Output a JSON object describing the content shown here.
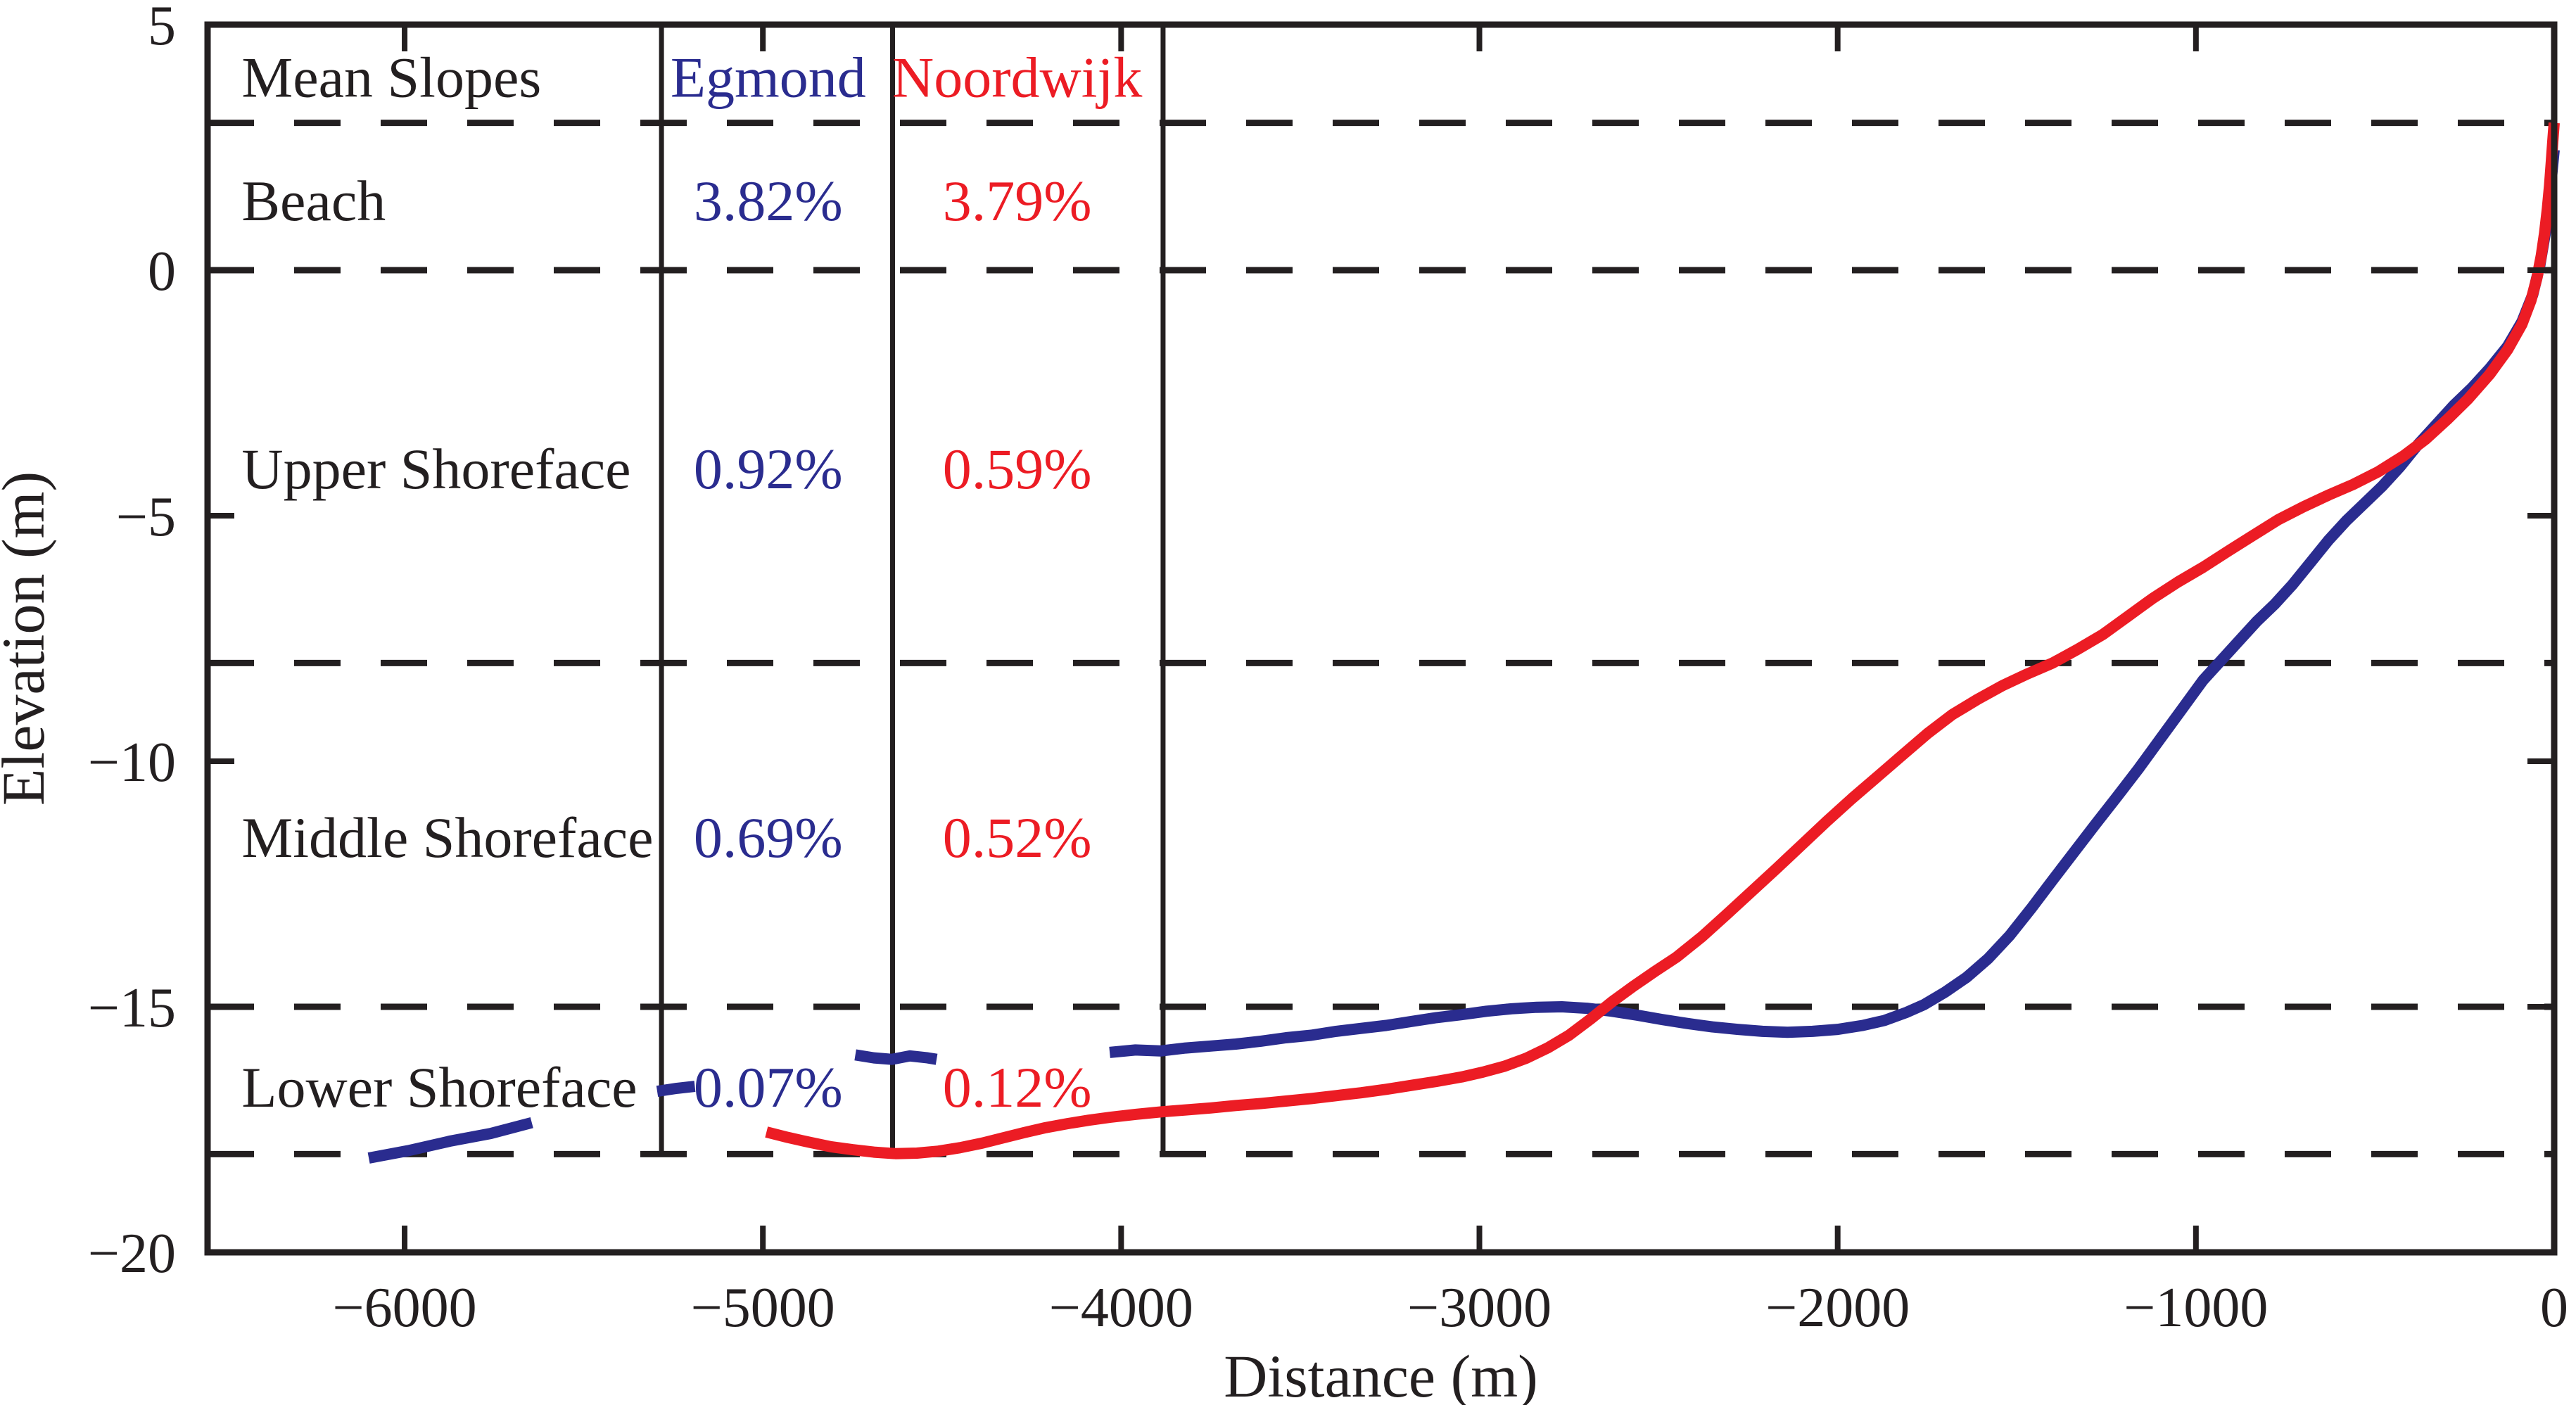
{
  "chart_data": {
    "type": "line",
    "title": "",
    "xlabel": "Distance (m)",
    "ylabel": "Elevation (m)",
    "xlim": [
      -6550,
      0
    ],
    "ylim": [
      -20,
      5
    ],
    "x_ticks": [
      -6000,
      -5000,
      -4000,
      -3000,
      -2000,
      -1000,
      0
    ],
    "x_tick_labels": [
      "−6000",
      "−5000",
      "−4000",
      "−3000",
      "−2000",
      "−1000",
      "0"
    ],
    "y_ticks": [
      5,
      0,
      -5,
      -10,
      -15,
      -20
    ],
    "y_tick_labels": [
      "5",
      "0",
      "−5",
      "−10",
      "−15",
      "−20"
    ],
    "gridlines_y": [
      3,
      0,
      -8,
      -15,
      -18
    ],
    "grid_style": "dashed",
    "legend_position": "none",
    "background": "#ffffff",
    "axis_color": "#231f20",
    "vertical_lines": [
      {
        "x": -5283,
        "y_top": 5,
        "y_bottom": -18
      },
      {
        "x": -4638,
        "y_top": 5,
        "y_bottom": -18
      },
      {
        "x": -3883,
        "y_top": 5,
        "y_bottom": -18
      }
    ],
    "series": [
      {
        "name": "Egmond",
        "color": "#2a2c8f",
        "segments": [
          [
            [
              -6100,
              -18.08
            ],
            [
              -5990,
              -17.93
            ],
            [
              -5870,
              -17.73
            ],
            [
              -5760,
              -17.58
            ],
            [
              -5645,
              -17.36
            ]
          ],
          [
            [
              -5295,
              -16.72
            ],
            [
              -5240,
              -16.66
            ],
            [
              -5190,
              -16.62
            ]
          ],
          [
            [
              -4742,
              -15.98
            ],
            [
              -4690,
              -16.04
            ],
            [
              -4640,
              -16.07
            ],
            [
              -4590,
              -16.0
            ],
            [
              -4540,
              -16.04
            ],
            [
              -4515,
              -16.07
            ]
          ],
          [
            [
              -4032,
              -15.93
            ],
            [
              -3960,
              -15.88
            ],
            [
              -3890,
              -15.9
            ],
            [
              -3820,
              -15.84
            ],
            [
              -3750,
              -15.8
            ],
            [
              -3680,
              -15.76
            ],
            [
              -3610,
              -15.7
            ],
            [
              -3540,
              -15.63
            ],
            [
              -3470,
              -15.58
            ],
            [
              -3400,
              -15.5
            ],
            [
              -3330,
              -15.44
            ],
            [
              -3260,
              -15.38
            ],
            [
              -3190,
              -15.3
            ],
            [
              -3120,
              -15.22
            ],
            [
              -3050,
              -15.16
            ],
            [
              -2980,
              -15.09
            ],
            [
              -2910,
              -15.04
            ],
            [
              -2840,
              -15.01
            ],
            [
              -2770,
              -15.0
            ],
            [
              -2700,
              -15.03
            ],
            [
              -2630,
              -15.09
            ],
            [
              -2560,
              -15.17
            ],
            [
              -2490,
              -15.26
            ],
            [
              -2420,
              -15.34
            ],
            [
              -2350,
              -15.41
            ],
            [
              -2280,
              -15.46
            ],
            [
              -2210,
              -15.5
            ],
            [
              -2140,
              -15.52
            ],
            [
              -2070,
              -15.5
            ],
            [
              -2000,
              -15.46
            ],
            [
              -1930,
              -15.38
            ],
            [
              -1870,
              -15.28
            ],
            [
              -1810,
              -15.12
            ],
            [
              -1760,
              -14.96
            ],
            [
              -1700,
              -14.7
            ],
            [
              -1640,
              -14.4
            ],
            [
              -1580,
              -14.02
            ],
            [
              -1520,
              -13.55
            ],
            [
              -1460,
              -13.0
            ],
            [
              -1400,
              -12.42
            ],
            [
              -1340,
              -11.85
            ],
            [
              -1280,
              -11.28
            ],
            [
              -1220,
              -10.72
            ],
            [
              -1160,
              -10.15
            ],
            [
              -1100,
              -9.55
            ],
            [
              -1040,
              -8.95
            ],
            [
              -980,
              -8.35
            ],
            [
              -930,
              -7.95
            ],
            [
              -880,
              -7.55
            ],
            [
              -830,
              -7.15
            ],
            [
              -780,
              -6.8
            ],
            [
              -730,
              -6.4
            ],
            [
              -680,
              -5.95
            ],
            [
              -630,
              -5.5
            ],
            [
              -580,
              -5.1
            ],
            [
              -530,
              -4.75
            ],
            [
              -480,
              -4.4
            ],
            [
              -430,
              -4.0
            ],
            [
              -380,
              -3.55
            ],
            [
              -330,
              -3.15
            ],
            [
              -280,
              -2.75
            ],
            [
              -230,
              -2.4
            ],
            [
              -180,
              -2.0
            ],
            [
              -130,
              -1.55
            ],
            [
              -90,
              -1.05
            ],
            [
              -60,
              -0.5
            ],
            [
              -40,
              0.1
            ],
            [
              -25,
              0.75
            ],
            [
              -14,
              1.4
            ],
            [
              -6,
              2.0
            ],
            [
              0,
              2.45
            ]
          ]
        ]
      },
      {
        "name": "Noordwijk",
        "color": "#ec1c24",
        "segments": [
          [
            [
              -4990,
              -17.55
            ],
            [
              -4930,
              -17.66
            ],
            [
              -4870,
              -17.76
            ],
            [
              -4810,
              -17.85
            ],
            [
              -4750,
              -17.91
            ],
            [
              -4690,
              -17.96
            ],
            [
              -4630,
              -17.99
            ],
            [
              -4570,
              -17.98
            ],
            [
              -4510,
              -17.94
            ],
            [
              -4450,
              -17.87
            ],
            [
              -4390,
              -17.78
            ],
            [
              -4330,
              -17.67
            ],
            [
              -4270,
              -17.56
            ],
            [
              -4210,
              -17.46
            ],
            [
              -4150,
              -17.38
            ],
            [
              -4090,
              -17.31
            ],
            [
              -4030,
              -17.25
            ],
            [
              -3960,
              -17.19
            ],
            [
              -3890,
              -17.14
            ],
            [
              -3820,
              -17.1
            ],
            [
              -3750,
              -17.06
            ],
            [
              -3680,
              -17.01
            ],
            [
              -3610,
              -16.97
            ],
            [
              -3540,
              -16.92
            ],
            [
              -3470,
              -16.87
            ],
            [
              -3400,
              -16.81
            ],
            [
              -3330,
              -16.75
            ],
            [
              -3260,
              -16.68
            ],
            [
              -3190,
              -16.6
            ],
            [
              -3120,
              -16.52
            ],
            [
              -3050,
              -16.43
            ],
            [
              -2990,
              -16.33
            ],
            [
              -2930,
              -16.21
            ],
            [
              -2870,
              -16.05
            ],
            [
              -2810,
              -15.84
            ],
            [
              -2750,
              -15.58
            ],
            [
              -2690,
              -15.25
            ],
            [
              -2630,
              -14.9
            ],
            [
              -2570,
              -14.58
            ],
            [
              -2510,
              -14.28
            ],
            [
              -2450,
              -13.99
            ],
            [
              -2380,
              -13.58
            ],
            [
              -2310,
              -13.12
            ],
            [
              -2240,
              -12.65
            ],
            [
              -2170,
              -12.18
            ],
            [
              -2100,
              -11.7
            ],
            [
              -2030,
              -11.22
            ],
            [
              -1960,
              -10.76
            ],
            [
              -1890,
              -10.32
            ],
            [
              -1820,
              -9.88
            ],
            [
              -1750,
              -9.44
            ],
            [
              -1680,
              -9.05
            ],
            [
              -1610,
              -8.74
            ],
            [
              -1540,
              -8.46
            ],
            [
              -1470,
              -8.22
            ],
            [
              -1400,
              -8.0
            ],
            [
              -1330,
              -7.72
            ],
            [
              -1260,
              -7.42
            ],
            [
              -1190,
              -7.05
            ],
            [
              -1120,
              -6.68
            ],
            [
              -1050,
              -6.35
            ],
            [
              -980,
              -6.05
            ],
            [
              -910,
              -5.72
            ],
            [
              -840,
              -5.4
            ],
            [
              -770,
              -5.08
            ],
            [
              -700,
              -4.82
            ],
            [
              -630,
              -4.58
            ],
            [
              -560,
              -4.36
            ],
            [
              -490,
              -4.1
            ],
            [
              -420,
              -3.78
            ],
            [
              -360,
              -3.45
            ],
            [
              -300,
              -3.05
            ],
            [
              -240,
              -2.62
            ],
            [
              -180,
              -2.12
            ],
            [
              -130,
              -1.62
            ],
            [
              -90,
              -1.1
            ],
            [
              -65,
              -0.62
            ],
            [
              -48,
              -0.15
            ],
            [
              -36,
              0.3
            ],
            [
              -27,
              0.75
            ],
            [
              -19,
              1.25
            ],
            [
              -13,
              1.72
            ],
            [
              -8,
              2.2
            ],
            [
              -4,
              2.62
            ],
            [
              0,
              3.0
            ]
          ]
        ]
      }
    ],
    "slope_table": {
      "title": "Mean Slopes",
      "columns": [
        "Egmond",
        "Noordwijk"
      ],
      "column_colors": [
        "#2a2c8f",
        "#ec1c24"
      ],
      "rows": [
        {
          "label": "Beach",
          "egmond": "3.82%",
          "noordwijk": "3.79%"
        },
        {
          "label": "Upper Shoreface",
          "egmond": "0.92%",
          "noordwijk": "0.59%"
        },
        {
          "label": "Middle Shoreface",
          "egmond": "0.69%",
          "noordwijk": "0.52%"
        },
        {
          "label": "Lower Shoreface",
          "egmond": "0.07%",
          "noordwijk": "0.12%"
        }
      ],
      "layout": {
        "label_x": -6455,
        "col_x": [
          -4985,
          -4290
        ],
        "header_y": 3.93,
        "row_y": [
          1.42,
          -4.04,
          -11.55,
          -16.63
        ]
      }
    }
  }
}
